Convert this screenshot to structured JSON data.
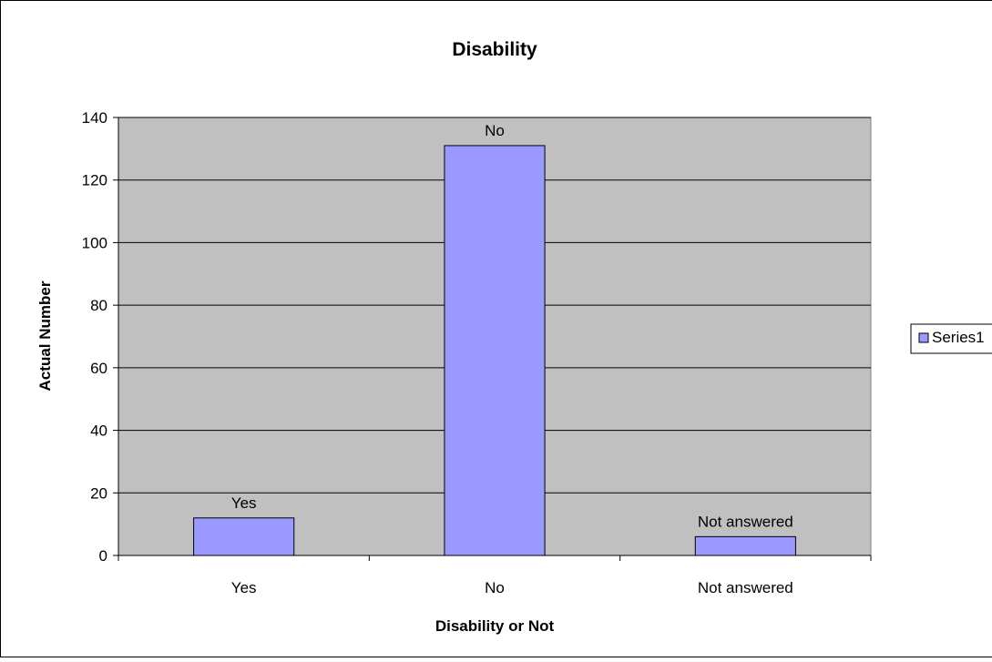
{
  "chart_data": {
    "type": "bar",
    "title": "Disability",
    "xlabel": "Disability or Not",
    "ylabel": "Actual Number",
    "categories": [
      "Yes",
      "No",
      "Not answered"
    ],
    "series": [
      {
        "name": "Series1",
        "values": [
          12,
          131,
          6
        ],
        "data_labels": [
          "Yes",
          "No",
          "Not answered"
        ]
      }
    ],
    "ylim": [
      0,
      140
    ],
    "yticks": [
      "0",
      "20",
      "40",
      "60",
      "80",
      "100",
      "120",
      "140"
    ],
    "grid": true,
    "legend": "right",
    "colors": {
      "bar_fill": "#9999ff",
      "bar_stroke": "#000000",
      "plot_background": "#c0c0c0",
      "gridline": "#000000"
    }
  }
}
